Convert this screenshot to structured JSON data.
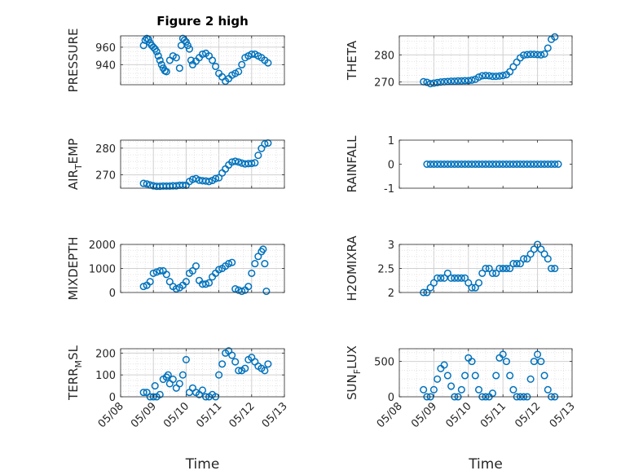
{
  "figure_title": "Figure 2 high",
  "x_axis_label": "Time",
  "x_tick_labels": [
    "05/08",
    "05/09",
    "05/10",
    "05/11",
    "05/12",
    "05/13"
  ],
  "marker_color": "#0072BD",
  "chart_data": [
    {
      "type": "scatter",
      "title": "Figure 2 high",
      "ylabel": "PRESSURE",
      "ylim": [
        917,
        973
      ],
      "yticks": [
        940,
        960
      ],
      "xlim": [
        0,
        5
      ],
      "grid": true,
      "x": [
        0.7,
        0.75,
        0.8,
        0.85,
        0.9,
        0.95,
        1.0,
        1.05,
        1.1,
        1.15,
        1.2,
        1.25,
        1.3,
        1.35,
        1.4,
        1.5,
        1.6,
        1.7,
        1.8,
        1.85,
        1.9,
        1.95,
        2.0,
        2.05,
        2.1,
        2.15,
        2.2,
        2.3,
        2.4,
        2.5,
        2.6,
        2.7,
        2.8,
        2.9,
        3.0,
        3.1,
        3.2,
        3.3,
        3.4,
        3.5,
        3.6,
        3.7,
        3.8,
        3.9,
        4.0,
        4.1,
        4.2,
        4.3,
        4.4,
        4.5
      ],
      "y": [
        962,
        968,
        970,
        969,
        965,
        962,
        960,
        958,
        955,
        950,
        945,
        940,
        936,
        933,
        932,
        945,
        950,
        948,
        936,
        962,
        970,
        968,
        966,
        962,
        958,
        945,
        940,
        944,
        948,
        952,
        953,
        950,
        945,
        938,
        930,
        926,
        921,
        924,
        928,
        930,
        932,
        940,
        948,
        950,
        952,
        952,
        950,
        948,
        945,
        942
      ]
    },
    {
      "type": "scatter",
      "ylabel": "THETA",
      "ylim": [
        269,
        287
      ],
      "yticks": [
        270,
        280
      ],
      "xlim": [
        0,
        5
      ],
      "grid": true,
      "x": [
        0.7,
        0.8,
        0.9,
        1.0,
        1.1,
        1.2,
        1.3,
        1.4,
        1.5,
        1.6,
        1.7,
        1.8,
        1.9,
        2.0,
        2.1,
        2.2,
        2.3,
        2.4,
        2.5,
        2.6,
        2.7,
        2.8,
        2.9,
        3.0,
        3.1,
        3.2,
        3.3,
        3.4,
        3.5,
        3.6,
        3.7,
        3.8,
        3.9,
        4.0,
        4.1,
        4.2,
        4.3,
        4.4,
        4.5
      ],
      "y": [
        270.1,
        269.9,
        269.4,
        269.6,
        269.8,
        270.0,
        270.1,
        270.2,
        270.3,
        270.3,
        270.4,
        270.4,
        270.5,
        270.5,
        270.7,
        271.0,
        271.8,
        272.3,
        272.4,
        272.3,
        272.1,
        272.1,
        272.2,
        272.4,
        272.7,
        273.8,
        275.6,
        277.3,
        278.9,
        279.9,
        280.1,
        280.2,
        280.2,
        280.1,
        280.0,
        280.3,
        282.5,
        285.7,
        286.6
      ]
    },
    {
      "type": "scatter",
      "ylabel": "AIR_TEMP",
      "ylim": [
        265,
        283
      ],
      "yticks": [
        270,
        280
      ],
      "xlim": [
        0,
        5
      ],
      "grid": true,
      "x": [
        0.7,
        0.8,
        0.9,
        1.0,
        1.1,
        1.2,
        1.3,
        1.4,
        1.5,
        1.6,
        1.7,
        1.8,
        1.9,
        2.0,
        2.1,
        2.2,
        2.3,
        2.4,
        2.5,
        2.6,
        2.7,
        2.8,
        2.9,
        3.0,
        3.1,
        3.2,
        3.3,
        3.4,
        3.5,
        3.6,
        3.7,
        3.8,
        3.9,
        4.0,
        4.1,
        4.2,
        4.3,
        4.4,
        4.5
      ],
      "y": [
        266.8,
        266.6,
        266.2,
        265.9,
        265.7,
        265.7,
        265.8,
        265.8,
        265.8,
        265.9,
        265.9,
        266.1,
        266.1,
        266.1,
        267.5,
        268.3,
        268.6,
        268.0,
        267.8,
        267.7,
        267.5,
        267.9,
        268.6,
        268.9,
        270.7,
        272.2,
        273.7,
        274.8,
        275.1,
        274.8,
        274.4,
        274.1,
        274.2,
        274.3,
        274.5,
        277.3,
        279.9,
        281.6,
        281.9
      ]
    },
    {
      "type": "scatter",
      "ylabel": "RAINFALL",
      "ylim": [
        -1,
        1
      ],
      "yticks": [
        -1,
        0,
        1
      ],
      "xlim": [
        0,
        5
      ],
      "grid": false,
      "x": [
        0.8,
        0.9,
        1.0,
        1.1,
        1.2,
        1.3,
        1.4,
        1.5,
        1.6,
        1.7,
        1.8,
        1.9,
        2.0,
        2.1,
        2.2,
        2.3,
        2.4,
        2.5,
        2.6,
        2.7,
        2.8,
        2.9,
        3.0,
        3.1,
        3.2,
        3.3,
        3.4,
        3.5,
        3.6,
        3.7,
        3.8,
        3.9,
        4.0,
        4.1,
        4.2,
        4.3,
        4.4,
        4.5,
        4.6
      ],
      "y": [
        0,
        0,
        0,
        0,
        0,
        0,
        0,
        0,
        0,
        0,
        0,
        0,
        0,
        0,
        0,
        0,
        0,
        0,
        0,
        0,
        0,
        0,
        0,
        0,
        0,
        0,
        0,
        0,
        0,
        0,
        0,
        0,
        0,
        0,
        0,
        0,
        0,
        0,
        0
      ]
    },
    {
      "type": "scatter",
      "ylabel": "MIXDEPTH",
      "ylim": [
        0,
        2000
      ],
      "yticks": [
        0,
        1000,
        2000
      ],
      "xlim": [
        0,
        5
      ],
      "grid": true,
      "x": [
        0.7,
        0.8,
        0.9,
        1.0,
        1.1,
        1.2,
        1.3,
        1.4,
        1.5,
        1.6,
        1.7,
        1.8,
        1.9,
        2.0,
        2.1,
        2.2,
        2.3,
        2.4,
        2.5,
        2.6,
        2.7,
        2.8,
        2.9,
        3.0,
        3.1,
        3.2,
        3.3,
        3.4,
        3.5,
        3.6,
        3.7,
        3.8,
        3.9,
        4.0,
        4.1,
        4.2,
        4.3,
        4.35,
        4.4,
        4.45
      ],
      "y": [
        250,
        300,
        450,
        800,
        850,
        900,
        900,
        750,
        450,
        250,
        150,
        200,
        300,
        450,
        800,
        900,
        1100,
        500,
        350,
        350,
        400,
        650,
        800,
        950,
        1000,
        1100,
        1200,
        1250,
        150,
        100,
        50,
        100,
        250,
        800,
        1200,
        1500,
        1700,
        1800,
        1200,
        50
      ]
    },
    {
      "type": "scatter",
      "ylabel": "H2OMIXRA",
      "ylim": [
        2,
        3
      ],
      "yticks": [
        2,
        2.5,
        3
      ],
      "xlim": [
        0,
        5
      ],
      "grid": true,
      "x": [
        0.7,
        0.8,
        0.9,
        1.0,
        1.1,
        1.2,
        1.3,
        1.4,
        1.5,
        1.6,
        1.7,
        1.8,
        1.9,
        2.0,
        2.1,
        2.2,
        2.3,
        2.4,
        2.5,
        2.6,
        2.7,
        2.8,
        2.9,
        3.0,
        3.1,
        3.2,
        3.3,
        3.4,
        3.5,
        3.6,
        3.7,
        3.8,
        3.9,
        4.0,
        4.1,
        4.2,
        4.3,
        4.4,
        4.5
      ],
      "y": [
        2.0,
        2.0,
        2.1,
        2.2,
        2.3,
        2.3,
        2.3,
        2.4,
        2.3,
        2.3,
        2.3,
        2.3,
        2.3,
        2.2,
        2.1,
        2.1,
        2.2,
        2.4,
        2.5,
        2.5,
        2.4,
        2.4,
        2.5,
        2.5,
        2.5,
        2.5,
        2.6,
        2.6,
        2.6,
        2.7,
        2.7,
        2.8,
        2.9,
        3.0,
        2.9,
        2.8,
        2.7,
        2.5,
        2.5
      ]
    },
    {
      "type": "scatter",
      "ylabel": "TERR_MSL",
      "ylim": [
        0,
        220
      ],
      "yticks": [
        0,
        100,
        200
      ],
      "xlim": [
        0,
        5
      ],
      "grid": true,
      "x": [
        0.7,
        0.8,
        0.9,
        1.0,
        1.05,
        1.1,
        1.2,
        1.3,
        1.4,
        1.45,
        1.5,
        1.6,
        1.7,
        1.8,
        1.9,
        2.0,
        2.1,
        2.2,
        2.3,
        2.4,
        2.5,
        2.6,
        2.7,
        2.8,
        2.9,
        3.0,
        3.1,
        3.2,
        3.3,
        3.4,
        3.5,
        3.6,
        3.7,
        3.8,
        3.9,
        4.0,
        4.1,
        4.2,
        4.3,
        4.4,
        4.5
      ],
      "y": [
        20,
        20,
        0,
        0,
        50,
        0,
        10,
        80,
        90,
        100,
        60,
        80,
        40,
        60,
        100,
        170,
        20,
        40,
        20,
        10,
        30,
        0,
        0,
        10,
        0,
        100,
        150,
        200,
        210,
        190,
        160,
        120,
        120,
        130,
        170,
        180,
        160,
        140,
        130,
        120,
        150
      ]
    },
    {
      "type": "scatter",
      "ylabel": "SUN_FLUX",
      "ylim": [
        0,
        680
      ],
      "yticks": [
        0,
        500
      ],
      "xlim": [
        0,
        5
      ],
      "grid": true,
      "x": [
        0.7,
        0.8,
        0.9,
        1.0,
        1.1,
        1.2,
        1.3,
        1.4,
        1.5,
        1.6,
        1.7,
        1.8,
        1.9,
        2.0,
        2.1,
        2.2,
        2.3,
        2.4,
        2.5,
        2.6,
        2.7,
        2.8,
        2.9,
        3.0,
        3.1,
        3.2,
        3.3,
        3.4,
        3.5,
        3.6,
        3.7,
        3.8,
        3.9,
        4.0,
        4.1,
        4.2,
        4.3,
        4.4,
        4.5
      ],
      "y": [
        100,
        0,
        0,
        100,
        250,
        400,
        450,
        300,
        150,
        0,
        0,
        100,
        300,
        550,
        500,
        300,
        100,
        0,
        0,
        0,
        50,
        300,
        550,
        600,
        500,
        300,
        100,
        0,
        0,
        0,
        0,
        250,
        500,
        600,
        500,
        300,
        100,
        0,
        0
      ]
    }
  ]
}
